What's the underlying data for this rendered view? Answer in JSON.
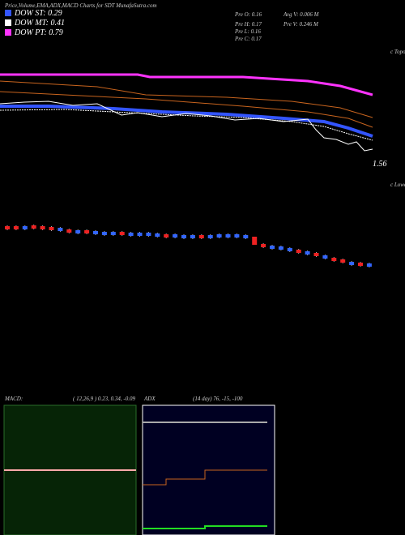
{
  "header": {
    "title": "Price,Volume,EMA,ADX,MACD Charts for SDT MunafaSutra.com"
  },
  "legend": [
    {
      "label": "DOW ST: 0.29",
      "color": "#3355ff"
    },
    {
      "label": "DOW MT: 0.41",
      "color": "#ffffff"
    },
    {
      "label": "DOW PT: 0.79",
      "color": "#ff33ff"
    }
  ],
  "info": [
    "Pre  O: 0.16",
    "Pre  H: 0.17",
    "Pre  L: 0.16",
    "Pre  C: 0.17"
  ],
  "volume": [
    "Avg V: 0.006  M",
    "Pre  V: 0.246  M"
  ],
  "price_panel": {
    "upper_label": "c Topo",
    "last_label": "1.56",
    "lower_label": "c Lower"
  },
  "macd": {
    "label": "MACD:",
    "values": "( 12,26,9 ) 0.23, 0.34, -0.09"
  },
  "adx": {
    "label": "ADX",
    "values": "(14  day) 76, -15, -100"
  }
}
